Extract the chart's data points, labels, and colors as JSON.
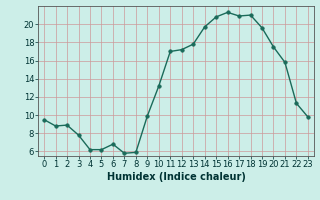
{
  "x": [
    0,
    1,
    2,
    3,
    4,
    5,
    6,
    7,
    8,
    9,
    10,
    11,
    12,
    13,
    14,
    15,
    16,
    17,
    18,
    19,
    20,
    21,
    22,
    23
  ],
  "y": [
    9.5,
    8.8,
    8.9,
    7.8,
    6.2,
    6.2,
    6.8,
    5.8,
    5.9,
    9.9,
    13.2,
    17.0,
    17.2,
    17.8,
    19.7,
    20.8,
    21.3,
    20.9,
    21.0,
    19.6,
    17.5,
    15.8,
    11.3,
    9.8
  ],
  "xlabel": "Humidex (Indice chaleur)",
  "xlim": [
    -0.5,
    23.5
  ],
  "ylim": [
    5.5,
    22.0
  ],
  "yticks": [
    6,
    8,
    10,
    12,
    14,
    16,
    18,
    20
  ],
  "xticks": [
    0,
    1,
    2,
    3,
    4,
    5,
    6,
    7,
    8,
    9,
    10,
    11,
    12,
    13,
    14,
    15,
    16,
    17,
    18,
    19,
    20,
    21,
    22,
    23
  ],
  "line_color": "#1a6b5a",
  "marker_color": "#1a6b5a",
  "bg_color": "#cceee8",
  "grid_color": "#cc9999",
  "axes_bg": "#cceee8",
  "spine_color": "#555555",
  "tick_label_color": "#003333",
  "label_fontsize": 7,
  "tick_fontsize": 6,
  "line_width": 1.0,
  "marker_size": 2.5
}
